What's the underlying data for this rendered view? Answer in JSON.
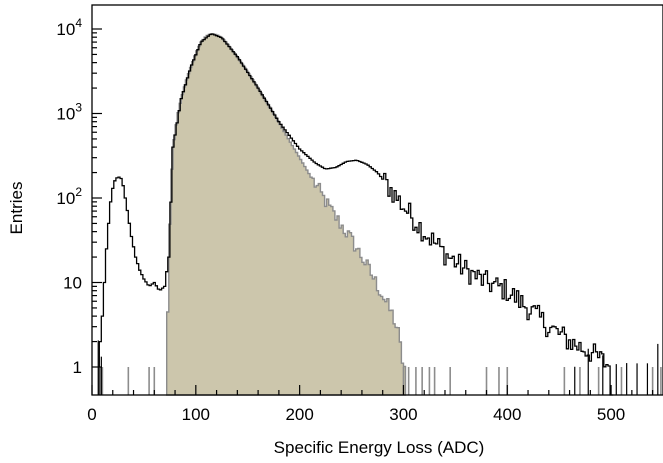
{
  "chart_data": {
    "type": "histogram",
    "title": "",
    "xlabel": "Specific Energy Loss (ADC)",
    "ylabel": "Entries",
    "xlim": [
      0,
      550
    ],
    "ylim": [
      0.5,
      13000
    ],
    "y_scale": "log",
    "grid": false,
    "legend": "none",
    "x_ticks": [
      {
        "value": 0,
        "label": "0"
      },
      {
        "value": 100,
        "label": "100"
      },
      {
        "value": 200,
        "label": "200"
      },
      {
        "value": 300,
        "label": "300"
      },
      {
        "value": 400,
        "label": "400"
      },
      {
        "value": 500,
        "label": "500"
      }
    ],
    "y_ticks": [
      {
        "value": 1,
        "base": "1",
        "exp": ""
      },
      {
        "value": 10,
        "base": "10",
        "exp": ""
      },
      {
        "value": 100,
        "base": "10",
        "exp": "2"
      },
      {
        "value": 1000,
        "base": "10",
        "exp": "3"
      },
      {
        "value": 10000,
        "base": "10",
        "exp": "4"
      }
    ],
    "series": [
      {
        "style": "filled-histogram",
        "fill": "#ccc6ac",
        "line": "#8c8c8c",
        "points": [
          [
            72,
            1
          ],
          [
            74,
            20
          ],
          [
            76,
            120
          ],
          [
            78,
            400
          ],
          [
            82,
            900
          ],
          [
            86,
            1500
          ],
          [
            90,
            2300
          ],
          [
            95,
            3500
          ],
          [
            100,
            5200
          ],
          [
            105,
            7000
          ],
          [
            110,
            8300
          ],
          [
            115,
            8800
          ],
          [
            120,
            8600
          ],
          [
            125,
            7900
          ],
          [
            130,
            6800
          ],
          [
            140,
            4700
          ],
          [
            150,
            3100
          ],
          [
            160,
            2000
          ],
          [
            170,
            1250
          ],
          [
            180,
            780
          ],
          [
            190,
            480
          ],
          [
            200,
            300
          ],
          [
            210,
            185
          ],
          [
            220,
            115
          ],
          [
            230,
            72
          ],
          [
            240,
            48
          ],
          [
            250,
            32
          ],
          [
            260,
            20
          ],
          [
            270,
            12
          ],
          [
            280,
            7
          ],
          [
            290,
            4
          ],
          [
            295,
            2.5
          ],
          [
            300,
            1
          ]
        ]
      },
      {
        "style": "outline-histogram",
        "line": "#000000",
        "points": [
          [
            7,
            1
          ],
          [
            8,
            2
          ],
          [
            10,
            4
          ],
          [
            12,
            10
          ],
          [
            14,
            25
          ],
          [
            16,
            50
          ],
          [
            18,
            90
          ],
          [
            20,
            130
          ],
          [
            22,
            160
          ],
          [
            25,
            180
          ],
          [
            28,
            170
          ],
          [
            30,
            140
          ],
          [
            32,
            100
          ],
          [
            35,
            60
          ],
          [
            38,
            35
          ],
          [
            42,
            20
          ],
          [
            46,
            14
          ],
          [
            50,
            11
          ],
          [
            55,
            9
          ],
          [
            60,
            10
          ],
          [
            65,
            8
          ],
          [
            70,
            9
          ],
          [
            74,
            20
          ],
          [
            78,
            400
          ],
          [
            86,
            1500
          ],
          [
            95,
            3500
          ],
          [
            105,
            7000
          ],
          [
            115,
            8800
          ],
          [
            125,
            7900
          ],
          [
            140,
            4700
          ],
          [
            160,
            2000
          ],
          [
            180,
            800
          ],
          [
            200,
            380
          ],
          [
            215,
            260
          ],
          [
            225,
            220
          ],
          [
            235,
            230
          ],
          [
            245,
            270
          ],
          [
            255,
            280
          ],
          [
            265,
            250
          ],
          [
            275,
            200
          ],
          [
            285,
            140
          ],
          [
            300,
            80
          ],
          [
            320,
            40
          ],
          [
            340,
            22
          ],
          [
            360,
            14
          ],
          [
            380,
            10
          ],
          [
            400,
            8
          ],
          [
            420,
            5
          ],
          [
            440,
            3
          ],
          [
            460,
            2
          ],
          [
            480,
            1.5
          ],
          [
            500,
            1
          ]
        ]
      }
    ]
  }
}
